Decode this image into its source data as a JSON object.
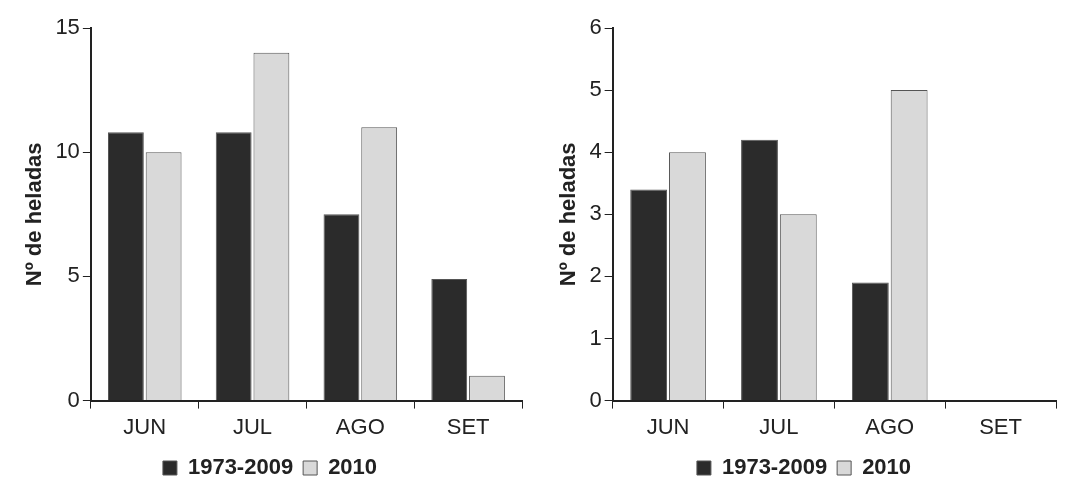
{
  "chart_data": [
    {
      "type": "bar",
      "categories": [
        "JUN",
        "JUL",
        "AGO",
        "SET"
      ],
      "ylabel": "Nº de heladas",
      "ylim": [
        0,
        15
      ],
      "yticks": [
        0,
        5,
        10,
        15
      ],
      "grid": false,
      "legend": "bottom",
      "series": [
        {
          "name": "1973-2009",
          "color": "#2b2b2b",
          "values": [
            10.8,
            10.8,
            7.5,
            4.9
          ]
        },
        {
          "name": "2010",
          "color": "#d9d9d9",
          "values": [
            10,
            14,
            11,
            1
          ]
        }
      ]
    },
    {
      "type": "bar",
      "categories": [
        "JUN",
        "JUL",
        "AGO",
        "SET"
      ],
      "ylabel": "Nº de heladas",
      "ylim": [
        0,
        6
      ],
      "yticks": [
        0,
        1,
        2,
        3,
        4,
        5,
        6
      ],
      "grid": false,
      "legend": "bottom",
      "series": [
        {
          "name": "1973-2009",
          "color": "#2b2b2b",
          "values": [
            3.4,
            4.2,
            1.9,
            null
          ]
        },
        {
          "name": "2010",
          "color": "#d9d9d9",
          "values": [
            4,
            3,
            5,
            null
          ]
        }
      ]
    }
  ]
}
